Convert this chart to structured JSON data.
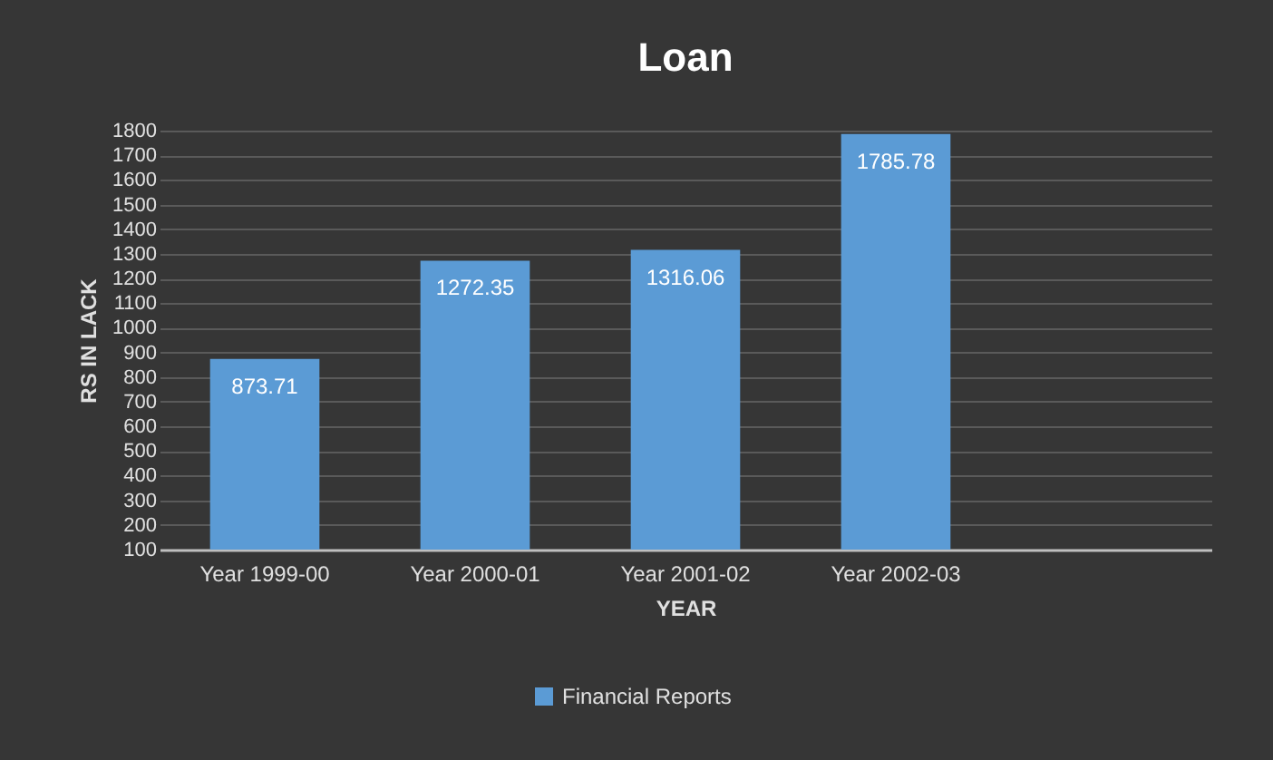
{
  "chart_data": {
    "type": "bar",
    "title": "Loan",
    "xlabel": "YEAR",
    "ylabel": "RS IN LACK",
    "categories": [
      "Year 1999-00",
      "Year 2000-01",
      "Year 2001-02",
      "Year 2002-03",
      null
    ],
    "series": [
      {
        "name": "Financial Reports",
        "color": "#5b9bd5",
        "values": [
          873.71,
          1272.35,
          1316.06,
          1785.78,
          null
        ]
      }
    ],
    "ylim": [
      100,
      1800
    ],
    "yticks": [
      100,
      200,
      300,
      400,
      500,
      600,
      700,
      800,
      900,
      1000,
      1100,
      1200,
      1300,
      1400,
      1500,
      1600,
      1700,
      1800
    ],
    "grid": "y",
    "legend": "bottom",
    "data_labels": true
  }
}
